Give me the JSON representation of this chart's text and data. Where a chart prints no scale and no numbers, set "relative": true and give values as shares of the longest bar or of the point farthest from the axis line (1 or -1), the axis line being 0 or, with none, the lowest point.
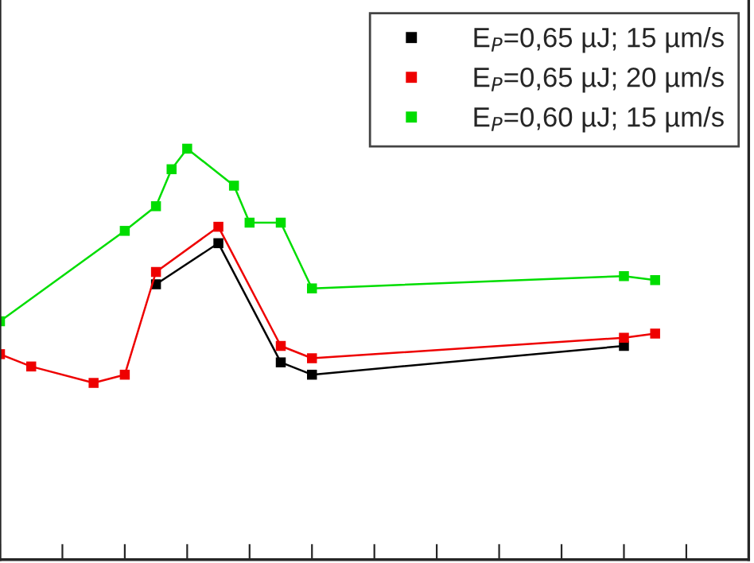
{
  "chart_data": {
    "type": "line",
    "relative": true,
    "marker": "square",
    "line_style": "solid",
    "legend": "top right",
    "categories": [
      null,
      null,
      null,
      null,
      null,
      null,
      null,
      null,
      null,
      null,
      null,
      null,
      null,
      null,
      null,
      null,
      null,
      null,
      null,
      null,
      null,
      null,
      null,
      null,
      null,
      null,
      null,
      null,
      null,
      null,
      null,
      null,
      null,
      null,
      null,
      null,
      null,
      null,
      null,
      null,
      null,
      null,
      null,
      null,
      null,
      null,
      null,
      null,
      null
    ],
    "series": [
      {
        "name": "E$_{P}$=0,65 µJ; 15 µm/s",
        "color": "#000000",
        "values": [
          null,
          null,
          null,
          null,
          null,
          null,
          null,
          null,
          null,
          null,
          0.67,
          null,
          null,
          null,
          0.77,
          null,
          null,
          null,
          0.48,
          null,
          0.45,
          null,
          null,
          null,
          null,
          null,
          null,
          null,
          null,
          null,
          null,
          null,
          null,
          null,
          null,
          null,
          null,
          null,
          null,
          null,
          0.52,
          null,
          null,
          null,
          null,
          null,
          null,
          null,
          null
        ]
      },
      {
        "name": "E$_{P}$=0,65 µJ; 20 µm/s",
        "color": "#ee0000",
        "values": [
          0.5,
          null,
          0.47,
          null,
          null,
          null,
          0.43,
          null,
          0.45,
          null,
          0.7,
          null,
          null,
          null,
          0.81,
          null,
          null,
          null,
          0.52,
          null,
          0.49,
          null,
          null,
          null,
          null,
          null,
          null,
          null,
          null,
          null,
          null,
          null,
          null,
          null,
          null,
          null,
          null,
          null,
          null,
          null,
          0.54,
          null,
          0.55,
          null,
          null,
          null,
          null,
          null,
          null
        ]
      },
      {
        "name": "E$_{P}$=0,60 µJ; 15 µm/s",
        "color": "#00dd00",
        "values": [
          0.58,
          null,
          null,
          null,
          null,
          null,
          null,
          null,
          0.8,
          null,
          0.86,
          0.95,
          1.0,
          null,
          null,
          0.91,
          0.82,
          null,
          0.82,
          null,
          0.66,
          null,
          null,
          null,
          null,
          null,
          null,
          null,
          null,
          null,
          null,
          null,
          null,
          null,
          null,
          null,
          null,
          null,
          null,
          null,
          0.69,
          null,
          0.68,
          null,
          null,
          null,
          null,
          null,
          null
        ]
      }
    ]
  }
}
